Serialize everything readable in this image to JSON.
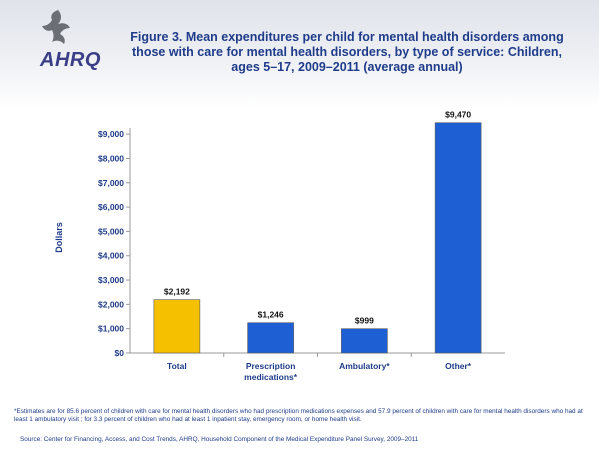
{
  "logo": {
    "text": "AHRQ"
  },
  "title": "Figure 3. Mean expenditures per child for mental health disorders among those with care for mental health disorders, by type of service: Children, ages 5–17, 2009–2011 (average annual)",
  "chart_data": {
    "type": "bar",
    "categories": [
      "Total",
      "Prescription medications*",
      "Ambulatory*",
      "Other*"
    ],
    "category_lines": [
      [
        "Total"
      ],
      [
        "Prescription",
        "medications*"
      ],
      [
        "Ambulatory*"
      ],
      [
        "Other*"
      ]
    ],
    "values": [
      2192,
      1246,
      999,
      9470
    ],
    "value_labels": [
      "$2,192",
      "$1,246",
      "$999",
      "$9,470"
    ],
    "bar_colors": [
      "#f5c000",
      "#1f5fd4",
      "#1f5fd4",
      "#1f5fd4"
    ],
    "ylabel": "Dollars",
    "ylim": [
      0,
      9500
    ],
    "yticks": [
      0,
      1000,
      2000,
      3000,
      4000,
      5000,
      6000,
      7000,
      8000,
      9000
    ],
    "ytick_labels": [
      "$0",
      "$1,000",
      "$2,000",
      "$3,000",
      "$4,000",
      "$5,000",
      "$6,000",
      "$7,000",
      "$8,000",
      "$9,000"
    ],
    "grid": false
  },
  "footnote": "*Estimates are for 85.6 percent of children with care for mental health disorders who had prescription medications expenses and 57.9 percent of children with care for mental health disorders who had at least 1 ambulatory visit ; for 3.3 percent of children who had at least 1 inpatient stay, emergency room, or home health visit.",
  "source": "Source: Center for Financing, Access, and Cost Trends, AHRQ, Household Component of the Medical Expenditure Panel Survey, 2009–2011",
  "colors": {
    "title": "#1f3c8a",
    "axis_text": "#1f3c8a",
    "highlight_bar": "#f5c000",
    "bar": "#1f5fd4"
  }
}
